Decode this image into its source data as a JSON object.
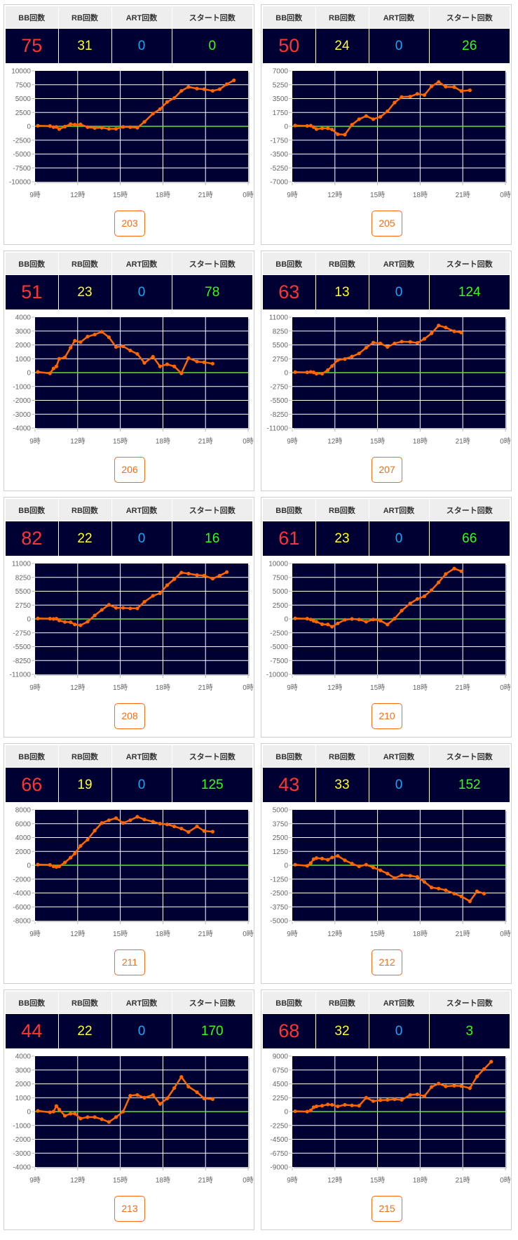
{
  "headers": {
    "bb": "BB回数",
    "rb": "RB回数",
    "art": "ART回数",
    "start": "スタート回数"
  },
  "colors": {
    "bb": "#ff3333",
    "rb": "#ffff22",
    "art": "#11aaff",
    "start": "#33ff11",
    "line": "#ff6600",
    "zero_line": "#66dd33",
    "plot_bg": "#000033",
    "badge": "#ff6a13"
  },
  "chart_data": {
    "type": "line",
    "x_tick_labels": [
      "9時",
      "12時",
      "15時",
      "18時",
      "21時",
      "0時"
    ],
    "x_range_hours": [
      9,
      24
    ],
    "x_hours": [
      9.2,
      10.05,
      10.3,
      10.5,
      10.7,
      11.1,
      11.5,
      11.8,
      12.2,
      12.7,
      13.2,
      13.7,
      14.2,
      14.7,
      15.2,
      15.7,
      16.2,
      16.7,
      17.3,
      17.8,
      18.3,
      18.8,
      19.3,
      19.8,
      20.4,
      20.9,
      21.5,
      22.0,
      22.5,
      23.0
    ],
    "charts": [
      {
        "ylim": [
          -10000,
          10000
        ],
        "y_ticks": [
          "10000",
          "7500",
          "5000",
          "2500",
          "0",
          "-2500",
          "-5000",
          "-7500",
          "-10000"
        ],
        "values": [
          100,
          50,
          -150,
          -100,
          -500,
          -50,
          400,
          300,
          350,
          -150,
          -300,
          -250,
          -450,
          -450,
          -100,
          -150,
          -250,
          800,
          2300,
          3100,
          4400,
          5100,
          6400,
          7100,
          6800,
          6700,
          6400,
          6700,
          7600,
          8300
        ]
      },
      {
        "ylim": [
          -7000,
          7000
        ],
        "y_ticks": [
          "7000",
          "5250",
          "3500",
          "1750",
          "0",
          "-1750",
          "-3500",
          "-5250",
          "-7000"
        ],
        "values": [
          100,
          50,
          80,
          -100,
          -350,
          -250,
          -250,
          -400,
          -1000,
          -1050,
          200,
          900,
          1300,
          900,
          1200,
          1900,
          3000,
          3700,
          3750,
          4100,
          3950,
          5050,
          5600,
          5000,
          4950,
          4450,
          4550
        ]
      },
      {
        "ylim": [
          -4000,
          4000
        ],
        "y_ticks": [
          "4000",
          "3000",
          "2000",
          "1000",
          "0",
          "-1000",
          "-2000",
          "-3000",
          "-4000"
        ],
        "values": [
          50,
          -50,
          300,
          450,
          1000,
          1100,
          1800,
          2300,
          2200,
          2600,
          2750,
          2950,
          2550,
          1850,
          1900,
          1600,
          1350,
          700,
          1150,
          450,
          600,
          450,
          -50,
          1050,
          800,
          750,
          650
        ]
      },
      {
        "ylim": [
          -11000,
          11000
        ],
        "y_ticks": [
          "11000",
          "8250",
          "5500",
          "2750",
          "0",
          "-2750",
          "-5500",
          "-8250",
          "-11000"
        ],
        "values": [
          100,
          50,
          150,
          50,
          -200,
          -200,
          500,
          1300,
          2500,
          2700,
          3200,
          3800,
          4950,
          5950,
          5800,
          5100,
          5800,
          6150,
          6100,
          5900,
          6700,
          7800,
          9350,
          8950,
          8200,
          7950
        ]
      },
      {
        "ylim": [
          -11000,
          11000
        ],
        "y_ticks": [
          "11000",
          "8250",
          "5500",
          "2750",
          "0",
          "-2750",
          "-5500",
          "-8250",
          "-11000"
        ],
        "values": [
          100,
          50,
          0,
          50,
          -300,
          -600,
          -650,
          -1100,
          -1250,
          -550,
          700,
          1800,
          2800,
          2200,
          2200,
          2100,
          2100,
          3400,
          4600,
          5100,
          6700,
          7900,
          9200,
          9000,
          8700,
          8600,
          8000,
          8600,
          9300
        ]
      },
      {
        "ylim": [
          -10000,
          10000
        ],
        "y_ticks": [
          "10000",
          "7500",
          "5000",
          "2500",
          "0",
          "-2500",
          "-5000",
          "-7500",
          "-10000"
        ],
        "values": [
          100,
          50,
          -100,
          -350,
          -500,
          -950,
          -1000,
          -1400,
          -800,
          -150,
          0,
          -100,
          -500,
          -100,
          -300,
          -1000,
          50,
          1500,
          2800,
          3600,
          4100,
          5200,
          6600,
          8100,
          9100,
          8600
        ]
      },
      {
        "ylim": [
          -8000,
          8000
        ],
        "y_ticks": [
          "8000",
          "6000",
          "4000",
          "2000",
          "0",
          "-2000",
          "-4000",
          "-6000",
          "-8000"
        ],
        "values": [
          100,
          50,
          -150,
          -250,
          -150,
          400,
          1100,
          1700,
          2800,
          3700,
          5000,
          6100,
          6500,
          6800,
          6100,
          6500,
          7000,
          6600,
          6300,
          6000,
          5900,
          5600,
          5300,
          4800,
          5600,
          4950,
          4850
        ]
      },
      {
        "ylim": [
          -5000,
          5000
        ],
        "y_ticks": [
          "5000",
          "3750",
          "2500",
          "1250",
          "0",
          "-1250",
          "-2500",
          "-3750",
          "-5000"
        ],
        "values": [
          50,
          -50,
          200,
          550,
          650,
          600,
          500,
          700,
          850,
          450,
          150,
          -100,
          50,
          -200,
          -450,
          -750,
          -1150,
          -900,
          -950,
          -1050,
          -1500,
          -2000,
          -2100,
          -2250,
          -2550,
          -2800,
          -3250,
          -2350,
          -2550
        ]
      },
      {
        "ylim": [
          -4000,
          4000
        ],
        "y_ticks": [
          "4000",
          "3000",
          "2000",
          "1000",
          "0",
          "-1000",
          "-2000",
          "-3000",
          "-4000"
        ],
        "values": [
          50,
          -50,
          0,
          400,
          150,
          -300,
          -150,
          -150,
          -500,
          -400,
          -400,
          -550,
          -750,
          -400,
          0,
          1150,
          1200,
          1000,
          1200,
          550,
          950,
          1700,
          2500,
          1800,
          1400,
          950,
          900
        ]
      },
      {
        "ylim": [
          -9000,
          9000
        ],
        "y_ticks": [
          "9000",
          "6750",
          "4500",
          "2250",
          "0",
          "-2250",
          "-4500",
          "-6750",
          "-9000"
        ],
        "values": [
          50,
          0,
          200,
          700,
          850,
          950,
          1150,
          1100,
          850,
          1100,
          1000,
          950,
          2250,
          1700,
          1850,
          1900,
          2000,
          1900,
          2700,
          2800,
          2500,
          4000,
          4550,
          4100,
          4200,
          4150,
          3800,
          5700,
          6900,
          8100
        ]
      }
    ]
  },
  "machines": [
    {
      "number": "203",
      "bb": "75",
      "rb": "31",
      "art": "0",
      "start": "0"
    },
    {
      "number": "205",
      "bb": "50",
      "rb": "24",
      "art": "0",
      "start": "26"
    },
    {
      "number": "206",
      "bb": "51",
      "rb": "23",
      "art": "0",
      "start": "78"
    },
    {
      "number": "207",
      "bb": "63",
      "rb": "13",
      "art": "0",
      "start": "124"
    },
    {
      "number": "208",
      "bb": "82",
      "rb": "22",
      "art": "0",
      "start": "16"
    },
    {
      "number": "210",
      "bb": "61",
      "rb": "23",
      "art": "0",
      "start": "66"
    },
    {
      "number": "211",
      "bb": "66",
      "rb": "19",
      "art": "0",
      "start": "125"
    },
    {
      "number": "212",
      "bb": "43",
      "rb": "33",
      "art": "0",
      "start": "152"
    },
    {
      "number": "213",
      "bb": "44",
      "rb": "22",
      "art": "0",
      "start": "170"
    },
    {
      "number": "215",
      "bb": "68",
      "rb": "32",
      "art": "0",
      "start": "3"
    }
  ]
}
